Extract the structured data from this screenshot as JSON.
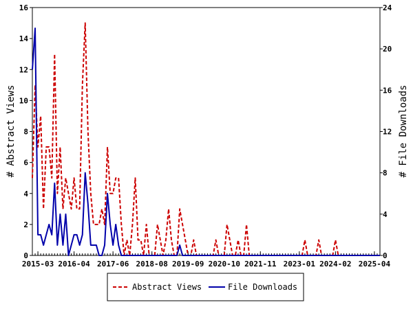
{
  "chart_data": {
    "type": "line",
    "ylabel": "# Abstract Views",
    "y2label": "# File Downloads",
    "ylim": [
      0,
      16
    ],
    "y2lim": [
      0,
      24
    ],
    "yticks": [
      0,
      2,
      4,
      6,
      8,
      10,
      12,
      14,
      16
    ],
    "y2ticks": [
      0,
      4,
      8,
      12,
      16,
      20,
      24
    ],
    "x_range": [
      "2015-01",
      "2025-06"
    ],
    "xtick_labels": [
      "2015-03",
      "2016-04",
      "2017-06",
      "2018-08",
      "2019-09",
      "2020-10",
      "2021-11",
      "2023-01",
      "2024-02",
      "2025-04"
    ],
    "xtick_dates": [
      "2015-03",
      "2016-04",
      "2017-06",
      "2018-08",
      "2019-09",
      "2020-10",
      "2021-11",
      "2023-01",
      "2024-02",
      "2025-04"
    ],
    "legend_position": "bottom-center",
    "series": [
      {
        "name": "Abstract Views",
        "axis": "left",
        "color": "#cc0000",
        "style": "dashed",
        "points": [
          [
            "2015-01",
            5
          ],
          [
            "2015-02",
            11
          ],
          [
            "2015-03",
            7
          ],
          [
            "2015-04",
            9
          ],
          [
            "2015-05",
            3
          ],
          [
            "2015-06",
            7
          ],
          [
            "2015-07",
            7
          ],
          [
            "2015-08",
            5
          ],
          [
            "2015-09",
            13
          ],
          [
            "2015-10",
            4
          ],
          [
            "2015-11",
            7
          ],
          [
            "2015-12",
            3
          ],
          [
            "2016-01",
            5
          ],
          [
            "2016-02",
            4
          ],
          [
            "2016-03",
            3
          ],
          [
            "2016-04",
            5
          ],
          [
            "2016-05",
            3
          ],
          [
            "2016-06",
            3
          ],
          [
            "2016-07",
            11
          ],
          [
            "2016-08",
            15
          ],
          [
            "2016-09",
            8
          ],
          [
            "2016-10",
            4
          ],
          [
            "2016-11",
            2
          ],
          [
            "2016-12",
            2
          ],
          [
            "2017-01",
            2
          ],
          [
            "2017-02",
            3
          ],
          [
            "2017-03",
            2
          ],
          [
            "2017-04",
            7
          ],
          [
            "2017-05",
            4
          ],
          [
            "2017-06",
            4
          ],
          [
            "2017-07",
            5
          ],
          [
            "2017-08",
            5
          ],
          [
            "2017-09",
            2
          ],
          [
            "2017-10",
            0
          ],
          [
            "2017-11",
            1
          ],
          [
            "2017-12",
            0
          ],
          [
            "2018-01",
            2
          ],
          [
            "2018-02",
            5
          ],
          [
            "2018-03",
            1
          ],
          [
            "2018-04",
            1
          ],
          [
            "2018-05",
            0
          ],
          [
            "2018-06",
            2
          ],
          [
            "2018-07",
            0
          ],
          [
            "2018-08",
            0
          ],
          [
            "2018-09",
            0
          ],
          [
            "2018-10",
            2
          ],
          [
            "2018-11",
            1
          ],
          [
            "2018-12",
            0
          ],
          [
            "2019-01",
            1
          ],
          [
            "2019-02",
            3
          ],
          [
            "2019-03",
            1
          ],
          [
            "2019-04",
            0
          ],
          [
            "2019-05",
            0
          ],
          [
            "2019-06",
            3
          ],
          [
            "2019-07",
            2
          ],
          [
            "2019-08",
            1
          ],
          [
            "2019-09",
            0
          ],
          [
            "2019-10",
            0
          ],
          [
            "2019-11",
            1
          ],
          [
            "2019-12",
            0
          ],
          [
            "2020-06",
            0
          ],
          [
            "2020-07",
            1
          ],
          [
            "2020-08",
            0
          ],
          [
            "2020-09",
            0
          ],
          [
            "2020-10",
            0
          ],
          [
            "2020-11",
            2
          ],
          [
            "2020-12",
            1
          ],
          [
            "2021-01",
            0
          ],
          [
            "2021-02",
            0
          ],
          [
            "2021-03",
            1
          ],
          [
            "2021-04",
            0
          ],
          [
            "2021-05",
            0
          ],
          [
            "2021-06",
            2
          ],
          [
            "2021-07",
            0
          ],
          [
            "2021-08",
            0
          ],
          [
            "2023-01",
            0
          ],
          [
            "2023-02",
            0
          ],
          [
            "2023-03",
            1
          ],
          [
            "2023-04",
            0
          ],
          [
            "2023-05",
            0
          ],
          [
            "2023-07",
            0
          ],
          [
            "2023-08",
            1
          ],
          [
            "2023-09",
            0
          ],
          [
            "2023-10",
            0
          ],
          [
            "2024-01",
            0
          ],
          [
            "2024-02",
            1
          ],
          [
            "2024-03",
            0
          ],
          [
            "2025-06",
            0
          ]
        ]
      },
      {
        "name": "File Downloads",
        "axis": "right",
        "color": "#0000aa",
        "style": "solid",
        "points": [
          [
            "2015-01",
            18
          ],
          [
            "2015-02",
            22
          ],
          [
            "2015-03",
            2
          ],
          [
            "2015-04",
            2
          ],
          [
            "2015-05",
            1
          ],
          [
            "2015-06",
            2
          ],
          [
            "2015-07",
            3
          ],
          [
            "2015-08",
            2
          ],
          [
            "2015-09",
            7
          ],
          [
            "2015-10",
            1
          ],
          [
            "2015-11",
            4
          ],
          [
            "2015-12",
            1
          ],
          [
            "2016-01",
            4
          ],
          [
            "2016-02",
            0
          ],
          [
            "2016-03",
            1
          ],
          [
            "2016-04",
            2
          ],
          [
            "2016-05",
            2
          ],
          [
            "2016-06",
            1
          ],
          [
            "2016-07",
            2
          ],
          [
            "2016-08",
            8
          ],
          [
            "2016-09",
            5
          ],
          [
            "2016-10",
            1
          ],
          [
            "2016-11",
            1
          ],
          [
            "2016-12",
            1
          ],
          [
            "2017-01",
            0
          ],
          [
            "2017-02",
            0
          ],
          [
            "2017-03",
            1
          ],
          [
            "2017-04",
            6
          ],
          [
            "2017-05",
            3
          ],
          [
            "2017-06",
            1
          ],
          [
            "2017-07",
            3
          ],
          [
            "2017-08",
            1
          ],
          [
            "2017-09",
            0
          ],
          [
            "2017-10",
            0
          ],
          [
            "2019-05",
            0
          ],
          [
            "2019-06",
            1
          ],
          [
            "2019-07",
            0
          ],
          [
            "2025-06",
            0
          ]
        ]
      }
    ]
  }
}
